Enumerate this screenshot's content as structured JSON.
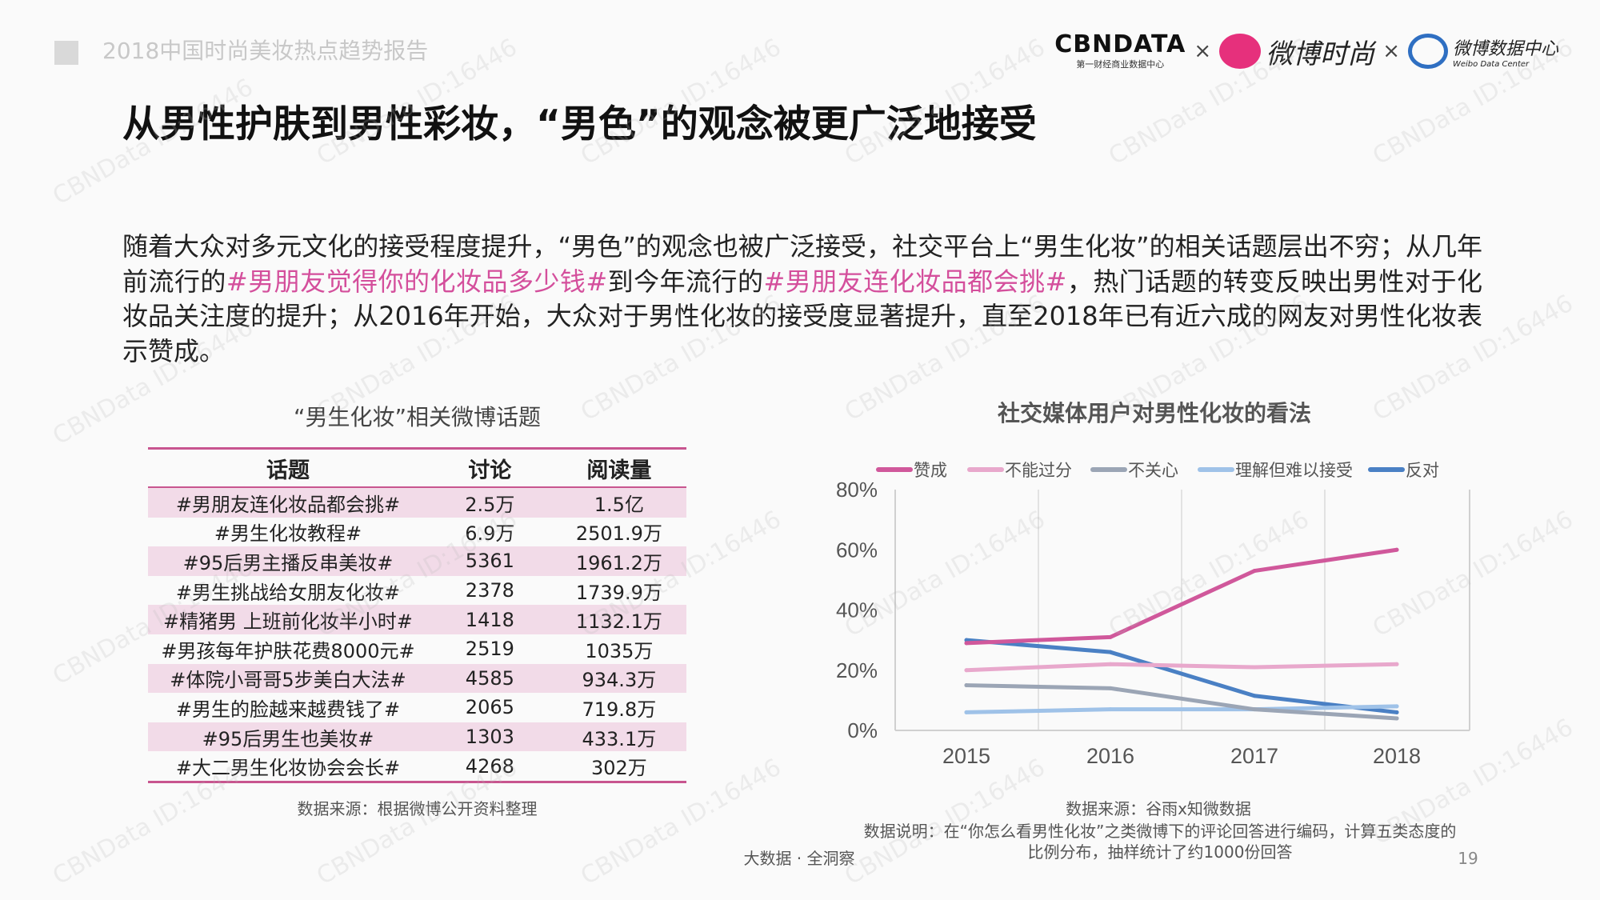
{
  "header": {
    "report_title": "2018中国时尚美妆热点趋势报告",
    "logos": {
      "cbndata": "CBNDATA",
      "cbndata_sub": "第一财经商业数据中心",
      "weibo_fashion": "微博时尚",
      "weibo_data": "微博数据中心",
      "weibo_data_sub": "Weibo Data Center",
      "separator": "×"
    }
  },
  "title": "从男性护肤到男性彩妆，“男色”的观念被更广泛地接受",
  "paragraph": [
    {
      "text": "随着大众对多元文化的接受程度提升，“男色”的观念也被广泛接受，社交平台上“男生化妆”的相关话题层出不穷；从几年前流行的",
      "highlight": false
    },
    {
      "text": "#男朋友觉得你的化妆品多少钱#",
      "highlight": true
    },
    {
      "text": "到今年流行的",
      "highlight": false
    },
    {
      "text": "#男朋友连化妆品都会挑#",
      "highlight": true
    },
    {
      "text": "，热门话题的转变反映出男性对于化妆品关注度的提升；从2016年开始，大众对于男性化妆的接受度显著提升，直至2018年已有近六成的网友对男性化妆表示赞成。",
      "highlight": false
    }
  ],
  "table": {
    "title": "“男生化妆”相关微博话题",
    "headers": [
      "话题",
      "讨论",
      "阅读量"
    ],
    "rows": [
      [
        "#男朋友连化妆品都会挑#",
        "2.5万",
        "1.5亿"
      ],
      [
        "#男生化妆教程#",
        "6.9万",
        "2501.9万"
      ],
      [
        "#95后男主播反串美妆#",
        "5361",
        "1961.2万"
      ],
      [
        "#男生挑战给女朋友化妆#",
        "2378",
        "1739.9万"
      ],
      [
        "#精猪男 上班前化妆半小时#",
        "1418",
        "1132.1万"
      ],
      [
        "#男孩每年护肤花费8000元#",
        "2519",
        "1035万"
      ],
      [
        "#体院小哥哥5步美白大法#",
        "4585",
        "934.3万"
      ],
      [
        "#男生的脸越来越费钱了#",
        "2065",
        "719.8万"
      ],
      [
        "#95后男生也美妆#",
        "1303",
        "433.1万"
      ],
      [
        "#大二男生化妆协会会长#",
        "4268",
        "302万"
      ]
    ],
    "source": "数据来源：根据微博公开资料整理",
    "colors": {
      "stripe": "#f2dbe8",
      "rule": "#c8558f"
    }
  },
  "chart_data": {
    "type": "line",
    "title": "社交媒体用户对男性化妆的看法",
    "categories": [
      "2015",
      "2016",
      "2017",
      "2018"
    ],
    "ylim": [
      0,
      80
    ],
    "yticks": [
      "0%",
      "20%",
      "40%",
      "60%",
      "80%"
    ],
    "ytick_values": [
      0,
      20,
      40,
      60,
      80
    ],
    "unit": "%",
    "grid": "vertical",
    "legend": "top",
    "series": [
      {
        "name": "赞成",
        "color": "#d0589b",
        "values": [
          29,
          31,
          53,
          60
        ]
      },
      {
        "name": "不能过分",
        "color": "#e8a8cc",
        "values": [
          20,
          22,
          21,
          22
        ]
      },
      {
        "name": "不关心",
        "color": "#9ba5b5",
        "values": [
          15,
          14,
          7,
          4
        ]
      },
      {
        "name": "理解但难以接受",
        "color": "#9fc2e8",
        "values": [
          6,
          7,
          7,
          8
        ]
      },
      {
        "name": "反对",
        "color": "#4a80c4",
        "values": [
          30,
          26,
          11.5,
          6
        ]
      }
    ]
  },
  "chart_source": "数据来源：谷雨x知微数据",
  "chart_note_1": "数据说明：在“你怎么看男性化妆”之类微博下的评论回答进行编码，计算五类态度的",
  "chart_note_2": "比例分布，抽样统计了约1000份回答",
  "footer": {
    "slogan": "大数据 · 全洞察",
    "page": "19"
  },
  "watermark": "CBNData ID:16446"
}
